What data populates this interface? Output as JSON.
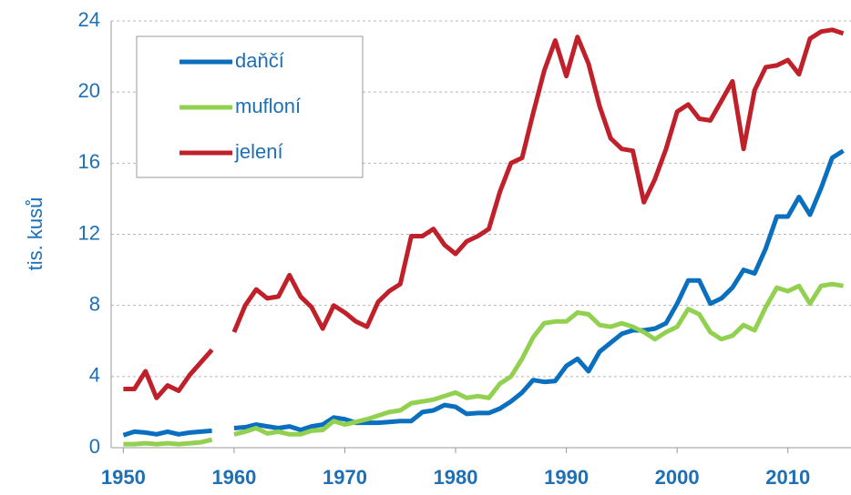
{
  "chart_data": {
    "type": "line",
    "ylabel": "tis. kusů",
    "x": [
      1950,
      1951,
      1952,
      1953,
      1954,
      1955,
      1956,
      1957,
      1958,
      1959,
      1960,
      1961,
      1962,
      1963,
      1964,
      1965,
      1966,
      1967,
      1968,
      1969,
      1970,
      1971,
      1972,
      1973,
      1974,
      1975,
      1976,
      1977,
      1978,
      1979,
      1980,
      1981,
      1982,
      1983,
      1984,
      1985,
      1986,
      1987,
      1988,
      1989,
      1990,
      1991,
      1992,
      1993,
      1994,
      1995,
      1996,
      1997,
      1998,
      1999,
      2000,
      2001,
      2002,
      2003,
      2004,
      2005,
      2006,
      2007,
      2008,
      2009,
      2010,
      2011,
      2012,
      2013,
      2014,
      2015
    ],
    "series": [
      {
        "name": "daňčí",
        "color": "#0a6fbf",
        "values": [
          0.7,
          0.9,
          0.85,
          0.75,
          0.9,
          0.75,
          0.85,
          0.9,
          0.95,
          null,
          1.1,
          1.15,
          1.3,
          1.2,
          1.1,
          1.2,
          1.0,
          1.2,
          1.3,
          1.7,
          1.6,
          1.4,
          1.4,
          1.4,
          1.45,
          1.5,
          1.5,
          2.0,
          2.1,
          2.4,
          2.3,
          1.9,
          1.95,
          1.95,
          2.2,
          2.6,
          3.1,
          3.8,
          3.7,
          3.75,
          4.6,
          5.0,
          4.3,
          5.4,
          5.9,
          6.4,
          6.6,
          6.6,
          6.7,
          7.0,
          8.1,
          9.4,
          9.4,
          8.1,
          8.4,
          9.0,
          10.0,
          9.8,
          11.2,
          13.0,
          13.0,
          14.1,
          13.1,
          14.6,
          16.3,
          16.7
        ]
      },
      {
        "name": "mufloní",
        "color": "#92d050",
        "values": [
          0.2,
          0.2,
          0.25,
          0.2,
          0.25,
          0.2,
          0.25,
          0.3,
          0.45,
          null,
          0.75,
          0.9,
          1.1,
          0.8,
          0.9,
          0.75,
          0.75,
          0.95,
          1.0,
          1.5,
          1.3,
          1.45,
          1.6,
          1.8,
          2.0,
          2.1,
          2.5,
          2.6,
          2.7,
          2.9,
          3.1,
          2.8,
          2.9,
          2.8,
          3.6,
          4.0,
          5.0,
          6.2,
          7.0,
          7.1,
          7.1,
          7.6,
          7.5,
          6.9,
          6.8,
          7.0,
          6.8,
          6.5,
          6.1,
          6.5,
          6.8,
          7.8,
          7.5,
          6.5,
          6.1,
          6.3,
          6.9,
          6.6,
          7.9,
          9.0,
          8.8,
          9.1,
          8.1,
          9.1,
          9.2,
          9.1
        ]
      },
      {
        "name": "jelení",
        "color": "#c0202a",
        "values": [
          3.3,
          3.3,
          4.3,
          2.8,
          3.5,
          3.2,
          4.1,
          4.8,
          5.5,
          null,
          6.5,
          8.0,
          8.9,
          8.4,
          8.5,
          9.7,
          8.5,
          7.9,
          6.7,
          8.0,
          7.6,
          7.1,
          6.8,
          8.2,
          8.8,
          9.2,
          11.9,
          11.9,
          12.3,
          11.4,
          10.9,
          11.6,
          11.9,
          12.3,
          14.4,
          16.0,
          16.3,
          18.8,
          21.2,
          22.9,
          20.9,
          23.1,
          21.6,
          19.2,
          17.4,
          16.8,
          16.7,
          13.8,
          15.1,
          16.8,
          18.9,
          19.3,
          18.5,
          18.4,
          19.5,
          20.6,
          16.8,
          20.1,
          21.4,
          21.5,
          21.8,
          21.0,
          23.0,
          23.4,
          23.5,
          23.3
        ]
      }
    ],
    "xlim": [
      1948.9,
      2015.7
    ],
    "xticks": [
      1950,
      1960,
      1970,
      1980,
      1990,
      2000,
      2010
    ],
    "ylim": [
      0,
      24
    ],
    "yticks": [
      0,
      4,
      8,
      12,
      16,
      20,
      24
    ],
    "grid": true,
    "legend": "upper left"
  }
}
